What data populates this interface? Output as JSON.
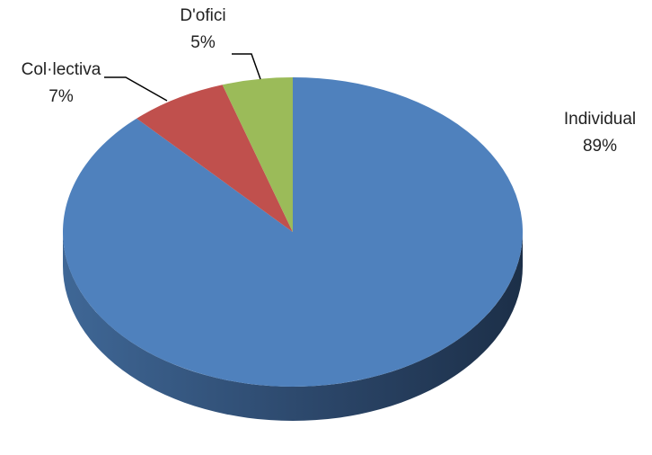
{
  "chart_data": {
    "type": "pie",
    "categories": [
      "Individual",
      "Col·lectiva",
      "D'ofici"
    ],
    "values": [
      89,
      7,
      5
    ],
    "value_labels": [
      "89%",
      "7%",
      "5%"
    ],
    "colors": [
      "#4f81bd",
      "#c0504d",
      "#9bbb59"
    ]
  }
}
